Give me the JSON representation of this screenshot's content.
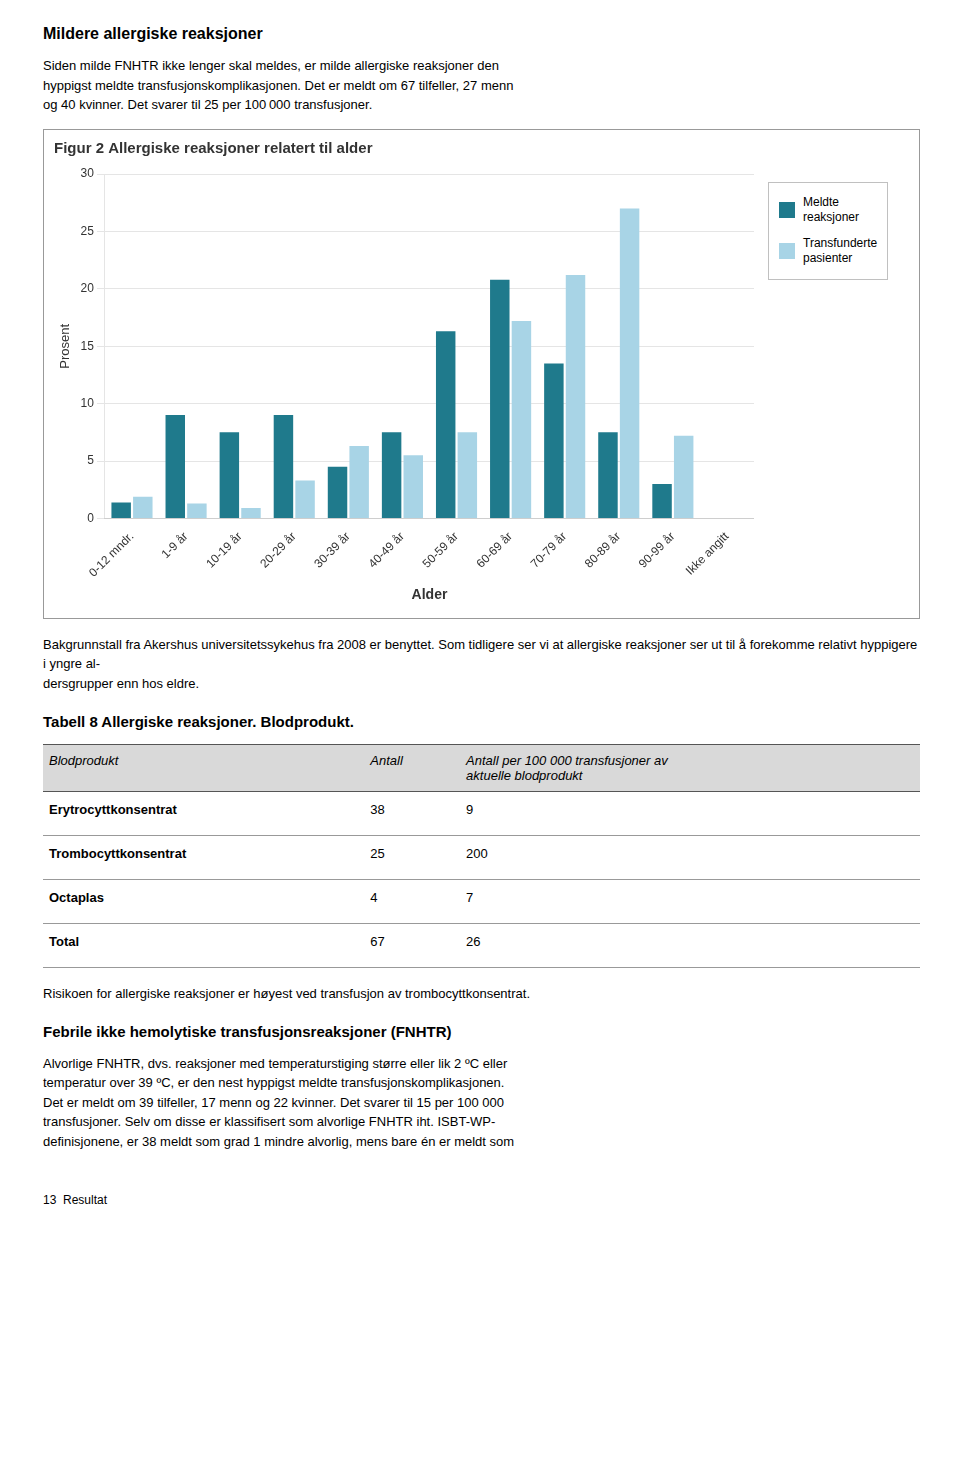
{
  "chart_data": {
    "type": "bar",
    "title": "Figur 2 Allergiske reaksjoner relatert til alder",
    "xlabel": "Alder",
    "ylabel": "Prosent",
    "categories": [
      "0-12 mndr.",
      "1-9 år",
      "10-19 år",
      "20-29 år",
      "30-39 år",
      "40-49 år",
      "50-59 år",
      "60-69 år",
      "70-79 år",
      "80-89 år",
      "90-99 år",
      "Ikke angitt"
    ],
    "series": [
      {
        "name": "Meldte\nreaksjoner",
        "color": "#1F7A8C",
        "values": [
          1.4,
          9.0,
          7.5,
          9.0,
          4.5,
          7.5,
          16.3,
          20.8,
          13.5,
          7.5,
          3.0,
          0
        ]
      },
      {
        "name": "Transfunderte\npasienter",
        "color": "#A8D4E6",
        "values": [
          1.9,
          1.3,
          0.9,
          3.3,
          6.3,
          5.5,
          7.5,
          17.2,
          21.2,
          27.0,
          7.2,
          0
        ]
      }
    ],
    "ylim": [
      0,
      30
    ],
    "yticks": [
      0,
      5,
      10,
      15,
      20,
      25,
      30
    ],
    "grid": true,
    "legend": "right",
    "annotations": [
      "Mildere allergiske reaksjoner",
      "Siden milde FNHTR ikke lenger skal meldes, er milde allergiske reaksjoner den\nhyppigst meldte transfusjonskomplikasjonen. Det er meldt om 67 tilfeller, 27 menn\nog 40 kvinner. Det svarer til 25 per 100 000 transfusjoner.",
      "Bakgrunnstall fra Akershus universitetssykehus fra 2008 er benyttet. Som tidligere ser vi at allergiske reaksjoner ser ut til å forekomme relativt hyppigere i yngre al-\ndersgrupper enn hos eldre.",
      "Tabell 8 Allergiske reaksjoner. Blodprodukt.",
      [
        [
          "Blodprodukt",
          "Antall",
          "Antall per 100 000 transfusjoner av\naktuelle blodprodukt"
        ],
        [
          "Erytrocyttkonsentrat",
          "38",
          "9"
        ],
        [
          "Trombocyttkonsentrat",
          "25",
          "200"
        ],
        [
          "Octaplas",
          "4",
          "7"
        ],
        [
          "Total",
          "67",
          "26"
        ]
      ],
      "Risikoen for allergiske reaksjoner er høyest ved transfusjon av trombocyttkonsentrat.",
      "Febrile ikke hemolytiske transfusjonsreaksjoner (FNHTR)",
      "Alvorlige FNHTR, dvs. reaksjoner med temperaturstiging større eller lik 2 ºC eller\ntemperatur over 39 ºC, er den nest hyppigst meldte transfusjonskomplikasjonen.\nDet er meldt om 39 tilfeller, 17 menn og 22 kvinner. Det svarer til 15 per 100 000\ntransfusjoner. Selv om disse er klassifisert som alvorlige FNHTR iht. ISBT-WP-\ndefinisjonene, er 38 meldt som grad 1 mindre alvorlig, mens bare én er meldt som",
      "13  Resultat"
    ]
  }
}
